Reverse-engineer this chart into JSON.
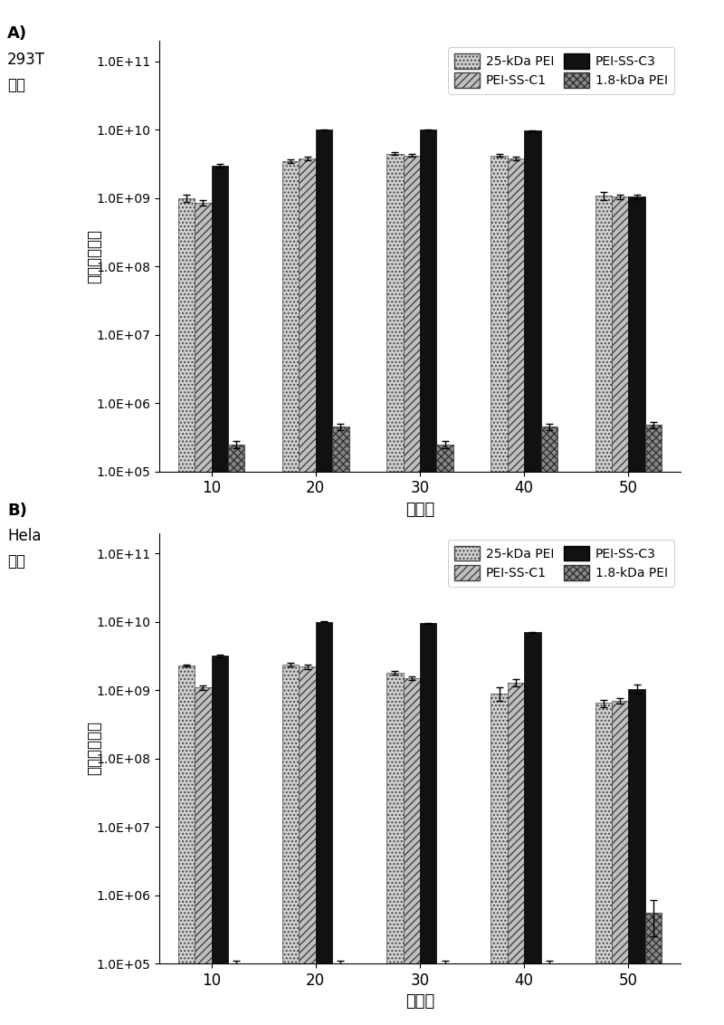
{
  "categories": [
    10,
    20,
    30,
    40,
    50
  ],
  "series_labels": [
    "25-kDa PEI",
    "PEI-SS-C1",
    "PEI-SS-C3",
    "1.8-kDa PEI"
  ],
  "A_values": [
    [
      1000000000.0,
      3500000000.0,
      4500000000.0,
      4200000000.0,
      1100000000.0
    ],
    [
      850000000.0,
      3800000000.0,
      4200000000.0,
      3800000000.0,
      1050000000.0
    ],
    [
      3000000000.0,
      10000000000.0,
      10000000000.0,
      9800000000.0,
      1050000000.0
    ],
    [
      250000.0,
      450000.0,
      250000.0,
      450000.0,
      480000.0
    ]
  ],
  "A_errors": [
    [
      120000000.0,
      200000000.0,
      200000000.0,
      200000000.0,
      150000000.0
    ],
    [
      80000000.0,
      200000000.0,
      200000000.0,
      200000000.0,
      80000000.0
    ],
    [
      200000000.0,
      150000000.0,
      150000000.0,
      150000000.0,
      80000000.0
    ],
    [
      30000.0,
      50000.0,
      30000.0,
      50000.0,
      50000.0
    ]
  ],
  "B_values": [
    [
      2300000000.0,
      2400000000.0,
      1800000000.0,
      900000000.0,
      650000000.0
    ],
    [
      1100000000.0,
      2200000000.0,
      1500000000.0,
      1300000000.0,
      700000000.0
    ],
    [
      3200000000.0,
      10000000000.0,
      9500000000.0,
      7000000000.0,
      1050000000.0
    ],
    [
      100000.0,
      100000.0,
      100000.0,
      100000.0,
      550000.0
    ]
  ],
  "B_errors": [
    [
      100000000.0,
      150000000.0,
      120000000.0,
      200000000.0,
      80000000.0
    ],
    [
      80000000.0,
      150000000.0,
      80000000.0,
      150000000.0,
      60000000.0
    ],
    [
      150000000.0,
      150000000.0,
      150000000.0,
      150000000.0,
      150000000.0
    ],
    [
      10000.0,
      10000.0,
      10000.0,
      10000.0,
      300000.0
    ]
  ],
  "panel_A_label": "A)",
  "panel_A_sub": "293T",
  "panel_A_sub2": "细胞",
  "panel_B_label": "B)",
  "panel_B_sub": "Hela",
  "panel_B_sub2": "细胞",
  "ylabel": "荧光素酶活性",
  "xlabel": "氮磷比",
  "ytick_labels": [
    "1.0E+05",
    "1.0E+06",
    "1.0E+07",
    "1.0E+08",
    "1.0E+09",
    "1.0E+10",
    "1.0E+11"
  ],
  "bar_width": 0.16,
  "bg_color": "#ffffff"
}
